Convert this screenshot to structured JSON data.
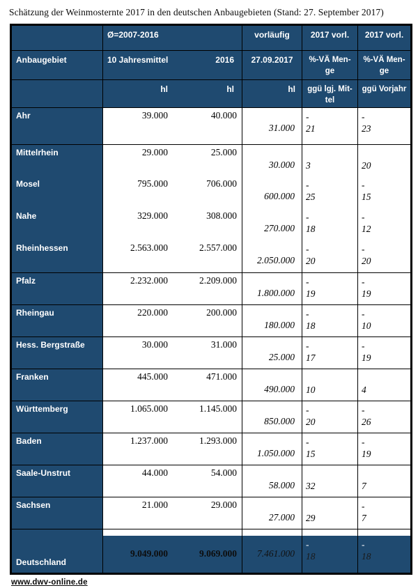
{
  "title": "Schätzung der Weinmosternte 2017 in den deutschen Anbaugebieten (Stand: 27. September 2017)",
  "colors": {
    "table_blue": "#1F4A70",
    "text": "#000000"
  },
  "header": {
    "region": "Anbaugebiet",
    "avg_group": "Ø=2007-2016",
    "avg_label": "10 Jahresmittel",
    "y2016_label": "2016",
    "prelim_top": "vorläufig",
    "prelim_date": "27.09.2017",
    "va1_top": "2017 vorl.",
    "va2_top": "2017 vorl.",
    "va_menge": "%-VÄ Men-\nge",
    "unit": "hl",
    "va1_bottom": "ggü lgj. Mit-\ntel",
    "va2_bottom": "ggü Vorjahr"
  },
  "rows": [
    {
      "region": "Ahr",
      "avg10": "39.000",
      "y2016": "40.000",
      "prelim": "31.000",
      "vs_mittel": "-21",
      "vs_vorjahr": "-23",
      "border_top": true,
      "is_total": false
    },
    {
      "region": "Mittelrhein",
      "avg10": "29.000",
      "y2016": "25.000",
      "prelim": "30.000",
      "vs_mittel": "3",
      "vs_vorjahr": "20",
      "border_top": true,
      "is_total": false
    },
    {
      "region": "Mosel",
      "avg10": "795.000",
      "y2016": "706.000",
      "prelim": "600.000",
      "vs_mittel": "-25",
      "vs_vorjahr": "-15",
      "border_top": false,
      "is_total": false
    },
    {
      "region": "Nahe",
      "avg10": "329.000",
      "y2016": "308.000",
      "prelim": "270.000",
      "vs_mittel": "-18",
      "vs_vorjahr": "-12",
      "border_top": false,
      "is_total": false
    },
    {
      "region": "Rheinhessen",
      "avg10": "2.563.000",
      "y2016": "2.557.000",
      "prelim": "2.050.000",
      "vs_mittel": "-20",
      "vs_vorjahr": "-20",
      "border_top": false,
      "is_total": false
    },
    {
      "region": "Pfalz",
      "avg10": "2.232.000",
      "y2016": "2.209.000",
      "prelim": "1.800.000",
      "vs_mittel": "-19",
      "vs_vorjahr": "-19",
      "border_top": true,
      "is_total": false
    },
    {
      "region": "Rheingau",
      "avg10": "220.000",
      "y2016": "200.000",
      "prelim": "180.000",
      "vs_mittel": "-18",
      "vs_vorjahr": "-10",
      "border_top": true,
      "is_total": false
    },
    {
      "region": "Hess. Bergstraße",
      "avg10": "30.000",
      "y2016": "31.000",
      "prelim": "25.000",
      "vs_mittel": "-17",
      "vs_vorjahr": "-19",
      "border_top": true,
      "is_total": false
    },
    {
      "region": "Franken",
      "avg10": "445.000",
      "y2016": "471.000",
      "prelim": "490.000",
      "vs_mittel": "10",
      "vs_vorjahr": "4",
      "border_top": true,
      "is_total": false
    },
    {
      "region": "Württemberg",
      "avg10": "1.065.000",
      "y2016": "1.145.000",
      "prelim": "850.000",
      "vs_mittel": "-20",
      "vs_vorjahr": "-26",
      "border_top": true,
      "is_total": false
    },
    {
      "region": "Baden",
      "avg10": "1.237.000",
      "y2016": "1.293.000",
      "prelim": "1.050.000",
      "vs_mittel": "-15",
      "vs_vorjahr": "-19",
      "border_top": true,
      "is_total": false
    },
    {
      "region": "Saale-Unstrut",
      "avg10": "44.000",
      "y2016": "54.000",
      "prelim": "58.000",
      "vs_mittel": "32",
      "vs_vorjahr": "7",
      "border_top": true,
      "is_total": false
    },
    {
      "region": "Sachsen",
      "avg10": "21.000",
      "y2016": "29.000",
      "prelim": "27.000",
      "vs_mittel": "29",
      "vs_vorjahr": "-7",
      "border_top": true,
      "is_total": false
    },
    {
      "region": "Deutschland",
      "avg10": "9.049.000",
      "y2016": "9.069.000",
      "prelim": "7.461.000",
      "vs_mittel": "-18",
      "vs_vorjahr": "-18",
      "border_top": true,
      "is_total": true
    }
  ],
  "footer": {
    "link": "www.dwv-online.de"
  }
}
